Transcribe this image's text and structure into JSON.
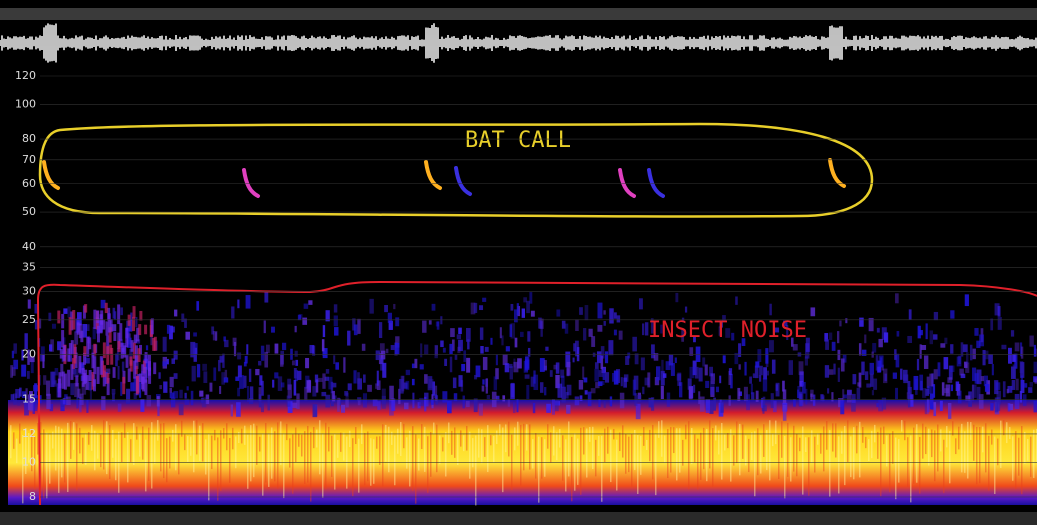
{
  "frequency_axis": {
    "ticks": [
      120,
      100,
      80,
      70,
      60,
      50,
      40,
      35,
      30,
      25,
      20,
      15,
      12,
      10,
      8
    ],
    "scale": "log"
  },
  "annotations": {
    "bat_call": "BAT CALL",
    "insect_noise": "INSECT NOISE"
  }
}
